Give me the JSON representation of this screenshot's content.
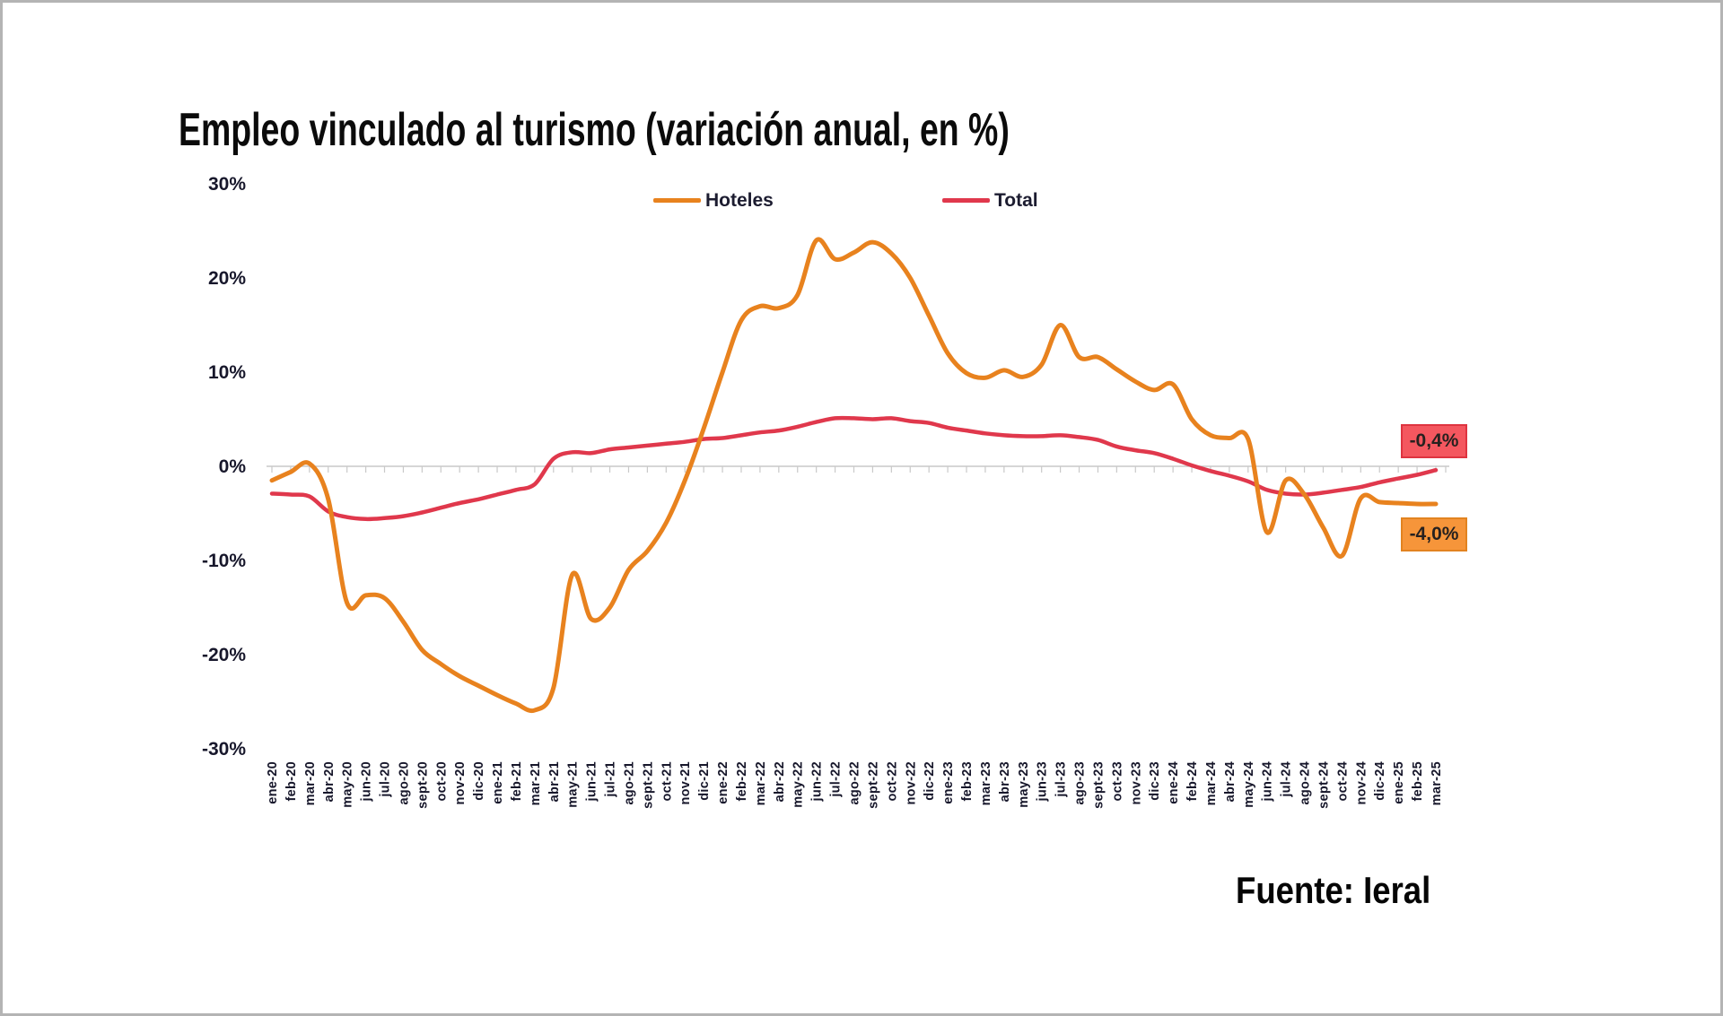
{
  "chart_data": {
    "type": "line",
    "title": "Empleo vinculado al turismo (variación anual, en %)",
    "source": "Fuente: Ieral",
    "legend_position": "top-center",
    "grid": "zero-line-only",
    "x_axis": {
      "categories": [
        "ene-20",
        "feb-20",
        "mar-20",
        "abr-20",
        "may-20",
        "jun-20",
        "jul-20",
        "ago-20",
        "sept-20",
        "oct-20",
        "nov-20",
        "dic-20",
        "ene-21",
        "feb-21",
        "mar-21",
        "abr-21",
        "may-21",
        "jun-21",
        "jul-21",
        "ago-21",
        "sept-21",
        "oct-21",
        "nov-21",
        "dic-21",
        "ene-22",
        "feb-22",
        "mar-22",
        "abr-22",
        "may-22",
        "jun-22",
        "jul-22",
        "ago-22",
        "sept-22",
        "oct-22",
        "nov-22",
        "dic-22",
        "ene-23",
        "feb-23",
        "mar-23",
        "abr-23",
        "may-23",
        "jun-23",
        "jul-23",
        "ago-23",
        "sept-23",
        "oct-23",
        "nov-23",
        "dic-23",
        "ene-24",
        "feb-24",
        "mar-24",
        "abr-24",
        "may-24",
        "jun-24",
        "jul-24",
        "ago-24",
        "sept-24",
        "oct-24",
        "nov-24",
        "dic-24",
        "ene-25",
        "feb-25",
        "mar-25"
      ]
    },
    "y_axis": {
      "range": [
        -30,
        30
      ],
      "ticks": [
        {
          "label": "30%",
          "value": 30
        },
        {
          "label": "20%",
          "value": 20
        },
        {
          "label": "10%",
          "value": 10
        },
        {
          "label": "0%",
          "value": 0
        },
        {
          "label": "-10%",
          "value": -10
        },
        {
          "label": "-20%",
          "value": -20
        },
        {
          "label": "-30%",
          "value": -30
        }
      ]
    },
    "series": [
      {
        "name": "Hoteles",
        "color": "#E8821E",
        "values": [
          -1.5,
          -0.6,
          0.3,
          -3.5,
          -14.5,
          -13.7,
          -14.0,
          -16.5,
          -19.5,
          -21.0,
          -22.3,
          -23.3,
          -24.3,
          -25.2,
          -25.9,
          -23.5,
          -11.5,
          -16.2,
          -15.0,
          -11.0,
          -9.0,
          -6.0,
          -1.5,
          4.0,
          10.0,
          15.5,
          17.0,
          16.8,
          18.2,
          24.0,
          22.0,
          22.7,
          23.8,
          22.6,
          20.0,
          16.0,
          12.0,
          9.9,
          9.4,
          10.2,
          9.5,
          10.8,
          15.0,
          11.6,
          11.6,
          10.3,
          9.0,
          8.1,
          8.7,
          5.0,
          3.3,
          3.0,
          2.9,
          -7.0,
          -1.5,
          -3.0,
          -6.5,
          -9.5,
          -3.4,
          -3.8,
          -3.9,
          -4.0,
          -4.0
        ]
      },
      {
        "name": "Total",
        "color": "#E0384C",
        "values": [
          -2.9,
          -3.0,
          -3.2,
          -4.8,
          -5.4,
          -5.6,
          -5.5,
          -5.3,
          -4.9,
          -4.4,
          -3.9,
          -3.5,
          -3.0,
          -2.5,
          -1.9,
          0.8,
          1.5,
          1.4,
          1.8,
          2.0,
          2.2,
          2.4,
          2.6,
          2.9,
          3.0,
          3.3,
          3.6,
          3.8,
          4.2,
          4.7,
          5.1,
          5.1,
          5.0,
          5.1,
          4.8,
          4.6,
          4.1,
          3.8,
          3.5,
          3.3,
          3.2,
          3.2,
          3.3,
          3.1,
          2.8,
          2.1,
          1.7,
          1.4,
          0.8,
          0.1,
          -0.5,
          -1.0,
          -1.6,
          -2.5,
          -2.9,
          -3.0,
          -2.8,
          -2.5,
          -2.2,
          -1.7,
          -1.3,
          -0.9,
          -0.4
        ]
      }
    ],
    "end_labels": [
      {
        "text": "-0,4%",
        "series": "Total",
        "bg": "#F4575F",
        "border": "#DE3440"
      },
      {
        "text": "-4,0%",
        "series": "Hoteles",
        "bg": "#F6953A",
        "border": "#E28320"
      }
    ]
  }
}
